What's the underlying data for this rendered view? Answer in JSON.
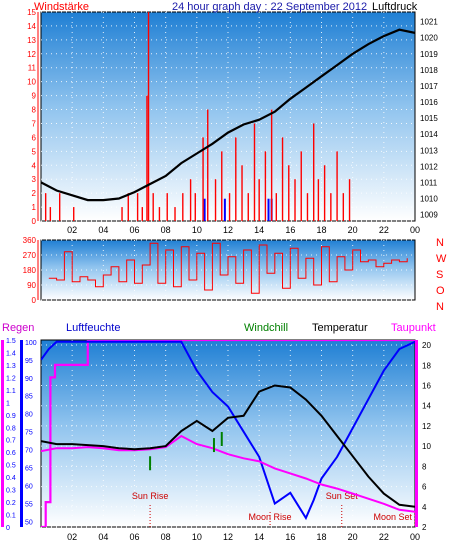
{
  "chart_data": [
    {
      "type": "line",
      "title": "24 hour graph day : 22 September 2012",
      "left_label": "Windstärke",
      "right_label": "Luftdruck",
      "x_ticks": [
        "02",
        "04",
        "06",
        "08",
        "10",
        "12",
        "14",
        "16",
        "18",
        "20",
        "22",
        "00"
      ],
      "y_left_ticks": [
        "0",
        "1",
        "2",
        "3",
        "4",
        "5",
        "6",
        "7",
        "8",
        "9",
        "10",
        "11",
        "12",
        "13",
        "14",
        "15"
      ],
      "y_right_ticks": [
        "1009",
        "1010",
        "1011",
        "1012",
        "1013",
        "1014",
        "1015",
        "1016",
        "1017",
        "1018",
        "1019",
        "1020",
        "1021"
      ],
      "ylim_left": [
        0,
        15
      ],
      "ylim_right": [
        1008.6,
        1021.6
      ],
      "colors": {
        "wind": "#ff0000",
        "pressure": "#000000",
        "calm": "#0000ff",
        "left_axis": "#ff0000",
        "right_axis": "#000000"
      },
      "series": [
        {
          "name": "Luftdruck",
          "x": [
            0,
            1,
            2,
            3,
            4,
            5,
            6,
            7,
            8,
            9,
            10,
            11,
            12,
            13,
            14,
            15,
            16,
            17,
            18,
            19,
            20,
            21,
            22,
            23,
            24
          ],
          "values": [
            1011.0,
            1010.5,
            1010.2,
            1009.9,
            1009.9,
            1010.0,
            1010.4,
            1010.9,
            1011.4,
            1012.2,
            1012.8,
            1013.4,
            1014.1,
            1014.6,
            1014.9,
            1015.4,
            1016.2,
            1016.9,
            1017.6,
            1018.3,
            1019.0,
            1019.6,
            1020.1,
            1020.5,
            1020.3
          ]
        },
        {
          "name": "Windstärke",
          "x": [
            0.3,
            0.6,
            1.2,
            2.1,
            5.2,
            5.6,
            6.2,
            6.5,
            6.8,
            6.9,
            7.2,
            7.6,
            8.1,
            8.6,
            9.1,
            9.6,
            9.9,
            10.4,
            10.7,
            11.2,
            11.6,
            12.1,
            12.5,
            12.9,
            13.3,
            13.7,
            14.0,
            14.4,
            14.8,
            15.1,
            15.5,
            15.9,
            16.3,
            16.7,
            17.1,
            17.5,
            17.8,
            18.2,
            18.6,
            19.0,
            19.4,
            19.8
          ],
          "values": [
            2,
            1,
            2,
            1,
            1,
            2,
            2,
            1,
            9,
            15,
            2,
            1,
            2,
            1,
            2,
            3,
            2,
            6,
            8,
            3,
            5,
            2,
            6,
            4,
            2,
            7,
            3,
            5,
            8,
            2,
            6,
            4,
            3,
            5,
            2,
            7,
            3,
            4,
            2,
            5,
            2,
            3
          ]
        }
      ]
    },
    {
      "type": "scatter",
      "side_label": [
        "N",
        "W",
        "S",
        "O",
        "N"
      ],
      "y_ticks": [
        "0",
        "90",
        "180",
        "270",
        "360"
      ],
      "ylim": [
        0,
        360
      ],
      "colors": {
        "direction": "#ff0000",
        "axis": "#ff0000"
      },
      "series": [
        {
          "name": "Windrichtung",
          "x": [
            0.5,
            1.0,
            1.5,
            2.0,
            2.5,
            3.0,
            3.5,
            4.0,
            4.5,
            5.0,
            5.5,
            6.0,
            6.5,
            7.0,
            7.5,
            8.0,
            8.5,
            9.0,
            9.5,
            10.0,
            10.5,
            11.0,
            11.5,
            12.0,
            12.5,
            13.0,
            13.5,
            14.0,
            14.5,
            15.0,
            15.5,
            16.0,
            16.5,
            17.0,
            17.5,
            18.0,
            18.5,
            19.0,
            19.5,
            20.0,
            20.5,
            21.0,
            21.5,
            22.0,
            22.5,
            23.0,
            23.5
          ],
          "values": [
            130,
            120,
            290,
            110,
            140,
            120,
            80,
            150,
            200,
            110,
            240,
            100,
            210,
            340,
            100,
            300,
            80,
            320,
            120,
            280,
            60,
            340,
            150,
            260,
            100,
            300,
            40,
            330,
            160,
            280,
            70,
            310,
            130,
            250,
            90,
            320,
            110,
            260,
            180,
            300,
            230,
            240,
            200,
            220,
            240,
            230,
            250
          ]
        }
      ]
    },
    {
      "type": "line",
      "labels": {
        "rain": "Regen",
        "humidity": "Luftfeuchte",
        "windchill": "Windchill",
        "temperature": "Temperatur",
        "dewpoint": "Taupunkt"
      },
      "y_rain_ticks": [
        "0",
        "0.1",
        "0.2",
        "0.3",
        "0.4",
        "0.5",
        "0.6",
        "0.7",
        "0.8",
        "0.9",
        "1",
        "1.1",
        "1.2",
        "1.3",
        "1.4",
        "1.5"
      ],
      "y_humidity_ticks": [
        "50",
        "55",
        "60",
        "65",
        "70",
        "75",
        "80",
        "85",
        "90",
        "95",
        "100"
      ],
      "y_temp_ticks": [
        "2",
        "4",
        "6",
        "8",
        "10",
        "12",
        "14",
        "16",
        "18",
        "20"
      ],
      "ylim_rain": [
        0,
        1.5
      ],
      "ylim_humidity": [
        48.5,
        100.5
      ],
      "ylim_temp": [
        2,
        20.5
      ],
      "colors": {
        "rain": "#ff00ff",
        "humidity": "#0000ff",
        "windchill": "#008000",
        "temperature": "#000000",
        "dewpoint": "#ff00ff",
        "sun_moon": "#cc0000"
      },
      "annotations": {
        "sun_rise": "Sun Rise",
        "sun_set": "Sun Set",
        "moon_rise": "Moon Rise",
        "moon_set": "Moon Set"
      },
      "annotation_hours": {
        "sun_rise": 7.0,
        "sun_set": 19.3,
        "moon_rise": 14.7,
        "moon_set": 24.0
      },
      "series": [
        {
          "name": "Temperatur",
          "x": [
            0,
            1,
            2,
            3,
            4,
            5,
            6,
            7,
            8,
            9,
            10,
            11,
            12,
            13,
            14,
            15,
            16,
            17,
            18,
            19,
            20,
            21,
            22,
            23,
            24
          ],
          "values": [
            10.5,
            10.2,
            10.2,
            10.1,
            10.0,
            9.8,
            9.7,
            9.8,
            10.0,
            11.5,
            12.5,
            11.5,
            12.8,
            13.0,
            15.4,
            16.0,
            15.8,
            14.6,
            13.0,
            11.0,
            9.0,
            7.0,
            5.3,
            4.2,
            4.0
          ]
        },
        {
          "name": "Luftfeuchte",
          "x": [
            0,
            0.5,
            1,
            2,
            3,
            4,
            5,
            6,
            7,
            8,
            9,
            10,
            11,
            12,
            13,
            14,
            15,
            16,
            17,
            17.5,
            18,
            19,
            20,
            21,
            22,
            23,
            24
          ],
          "values": [
            95,
            98,
            100,
            100,
            100,
            100,
            100,
            100,
            100,
            100,
            100,
            92,
            86,
            82,
            75,
            68,
            55,
            58,
            51,
            56,
            62,
            68,
            76,
            84,
            92,
            98,
            100
          ]
        },
        {
          "name": "Taupunkt",
          "x": [
            0,
            1,
            2,
            3,
            4,
            5,
            6,
            7,
            8,
            9,
            10,
            11,
            12,
            13,
            14,
            15,
            16,
            17,
            18,
            19,
            20,
            21,
            22,
            23,
            24
          ],
          "values": [
            9.5,
            9.8,
            9.8,
            9.9,
            9.8,
            9.6,
            9.6,
            9.7,
            9.9,
            11.0,
            10.2,
            9.8,
            9.2,
            8.8,
            8.5,
            7.8,
            7.3,
            6.8,
            6.2,
            5.8,
            5.3,
            4.8,
            4.3,
            3.7,
            3.5
          ]
        },
        {
          "name": "Regen",
          "x": [
            0,
            0.3,
            0.6,
            0.9,
            1.2,
            2.9,
            3.0,
            24
          ],
          "values": [
            0,
            0.2,
            1.2,
            1.3,
            1.3,
            1.3,
            1.5,
            1.5
          ]
        },
        {
          "name": "Windchill",
          "x": [
            7.0,
            11.1,
            11.6
          ],
          "values": [
            9.0,
            10.8,
            11.4
          ]
        }
      ]
    }
  ]
}
